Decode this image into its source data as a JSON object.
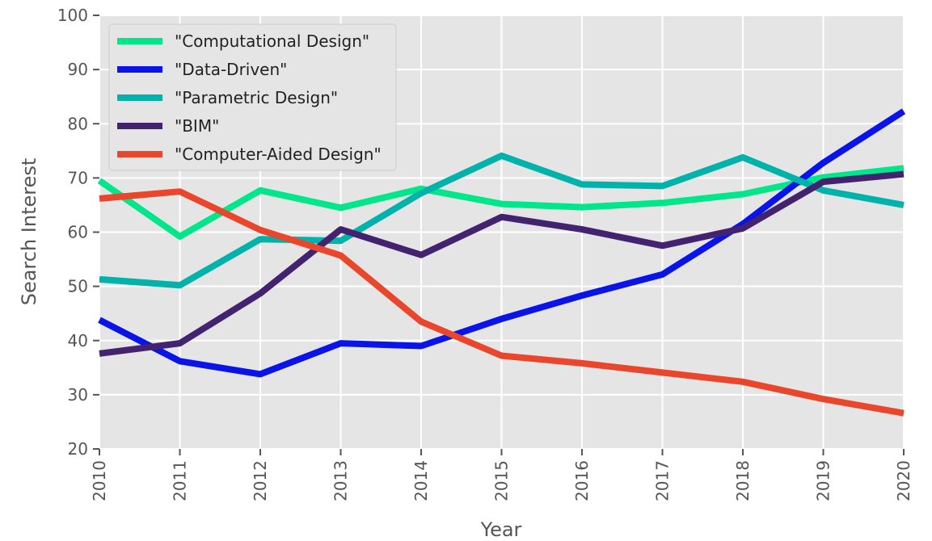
{
  "chart_data": {
    "type": "line",
    "title": "",
    "xlabel": "Year",
    "ylabel": "Search Interest",
    "categories": [
      "2010",
      "2011",
      "2012",
      "2013",
      "2014",
      "2015",
      "2016",
      "2017",
      "2018",
      "2019",
      "2020"
    ],
    "ylim": [
      20,
      100
    ],
    "yticks": [
      "20",
      "30",
      "40",
      "50",
      "60",
      "70",
      "80",
      "90",
      "100"
    ],
    "grid": true,
    "legend_position": "top-left",
    "series": [
      {
        "name": "\"Computational Design\"",
        "color": "#00e68a",
        "values": [
          69.5,
          59.2,
          67.7,
          64.5,
          68.0,
          65.2,
          64.6,
          65.4,
          67.0,
          70.1,
          71.8
        ]
      },
      {
        "name": "\"Data-Driven\"",
        "color": "#0a14e8",
        "values": [
          43.8,
          36.2,
          33.8,
          39.5,
          39.0,
          44.0,
          48.3,
          52.2,
          61.5,
          72.8,
          82.3
        ]
      },
      {
        "name": "\"Parametric Design\"",
        "color": "#00b3aa",
        "values": [
          51.3,
          50.2,
          58.7,
          58.4,
          67.2,
          74.1,
          68.8,
          68.5,
          73.8,
          67.7,
          65.0
        ]
      },
      {
        "name": "\"BIM\"",
        "color": "#43236f",
        "values": [
          37.6,
          39.5,
          48.7,
          60.5,
          55.8,
          62.8,
          60.5,
          57.5,
          60.7,
          69.3,
          70.7
        ]
      },
      {
        "name": "\"Computer-Aided Design\"",
        "color": "#e9462b",
        "values": [
          66.2,
          67.5,
          60.4,
          55.7,
          43.5,
          37.2,
          35.8,
          34.1,
          32.4,
          29.2,
          26.6
        ]
      }
    ]
  }
}
